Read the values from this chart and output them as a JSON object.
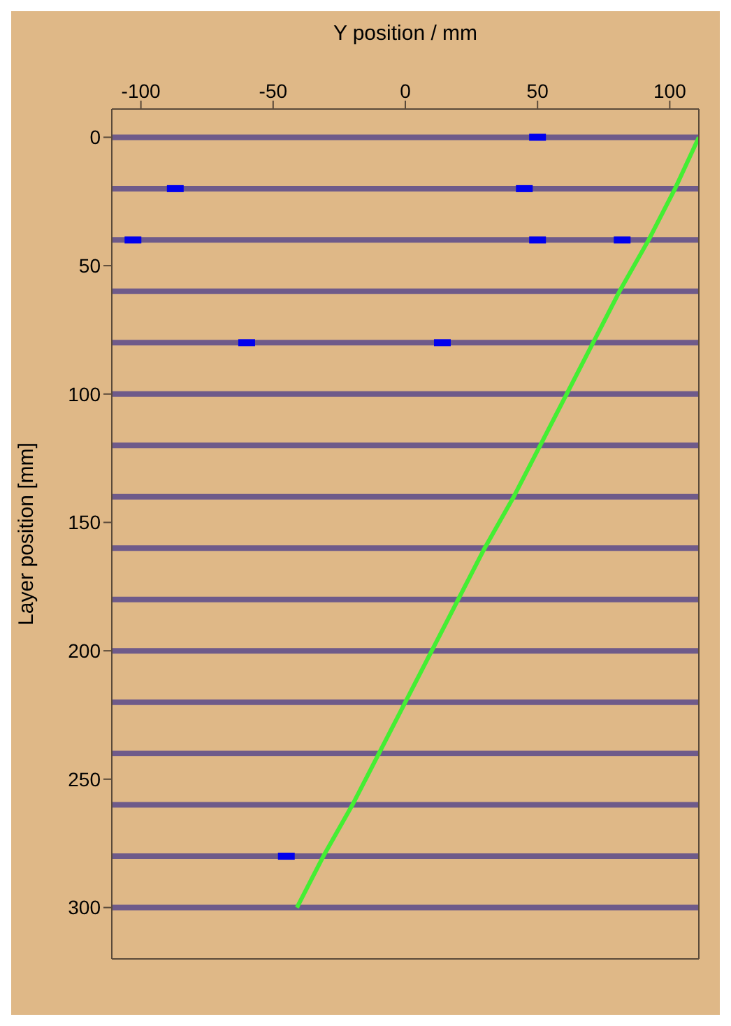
{
  "chart_data": {
    "type": "scatter",
    "xlabel": "Y position / mm",
    "ylabel": "Layer position [mm]",
    "xlim": [
      -111,
      111
    ],
    "xticks": [
      -100,
      -50,
      0,
      50,
      100
    ],
    "ylim": [
      320,
      -11
    ],
    "yticks": [
      0,
      50,
      100,
      150,
      200,
      250,
      300
    ],
    "grid": false,
    "ref_lines": [
      {
        "axis": "y",
        "value": 0,
        "color": "#6e5a8a"
      },
      {
        "axis": "y",
        "value": 20,
        "color": "#6e5a8a"
      },
      {
        "axis": "y",
        "value": 40,
        "color": "#6e5a8a"
      },
      {
        "axis": "y",
        "value": 60,
        "color": "#6e5a8a"
      },
      {
        "axis": "y",
        "value": 80,
        "color": "#6e5a8a"
      },
      {
        "axis": "y",
        "value": 100,
        "color": "#6e5a8a"
      },
      {
        "axis": "y",
        "value": 120,
        "color": "#6e5a8a"
      },
      {
        "axis": "y",
        "value": 140,
        "color": "#6e5a8a"
      },
      {
        "axis": "y",
        "value": 160,
        "color": "#6e5a8a"
      },
      {
        "axis": "y",
        "value": 180,
        "color": "#6e5a8a"
      },
      {
        "axis": "y",
        "value": 200,
        "color": "#6e5a8a"
      },
      {
        "axis": "y",
        "value": 220,
        "color": "#6e5a8a"
      },
      {
        "axis": "y",
        "value": 240,
        "color": "#6e5a8a"
      },
      {
        "axis": "y",
        "value": 260,
        "color": "#6e5a8a"
      },
      {
        "axis": "y",
        "value": 280,
        "color": "#6e5a8a"
      },
      {
        "axis": "y",
        "value": 300,
        "color": "#6e5a8a"
      }
    ],
    "series": [
      {
        "type": "line",
        "color": "#44ee33",
        "marker": "none",
        "x": [
          111,
          102,
          92,
          81,
          71,
          61,
          51,
          41,
          30,
          20,
          10,
          0,
          -10,
          -20,
          -31,
          -41
        ],
        "values": [
          0,
          20,
          40,
          60,
          80,
          100,
          120,
          140,
          160,
          180,
          200,
          220,
          240,
          260,
          280,
          300
        ]
      },
      {
        "color": "#0000ee",
        "marker": "square",
        "x": [
          50,
          -87,
          45,
          -103,
          50,
          82,
          -60,
          14,
          -45
        ],
        "values": [
          0,
          20,
          20,
          40,
          40,
          40,
          80,
          80,
          280
        ]
      }
    ]
  }
}
